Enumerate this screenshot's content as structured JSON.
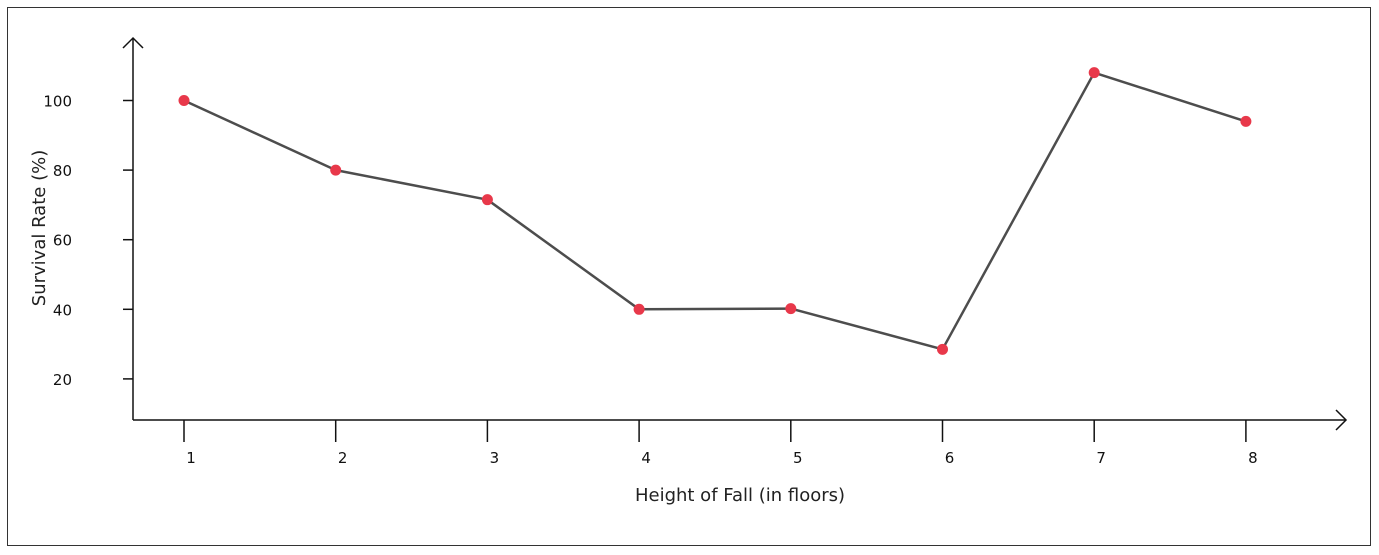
{
  "chart_data": {
    "type": "line",
    "title": "",
    "xlabel": "Height of Fall (in floors)",
    "ylabel": "Survival Rate (%)",
    "x": [
      1,
      2,
      3,
      4,
      5,
      6,
      7,
      8
    ],
    "x_tick_labels": [
      "1",
      "2",
      "3",
      "4",
      "5",
      "6",
      "7",
      "8"
    ],
    "y_ticks": [
      20,
      40,
      60,
      80,
      100
    ],
    "y_tick_labels": [
      "20",
      "40",
      "60",
      "80",
      "100"
    ],
    "ylim": [
      8,
      117
    ],
    "series": [
      {
        "values": [
          100,
          80,
          71.5,
          40,
          40.2,
          28.5,
          108,
          94
        ],
        "line_color": "#4d4d4d",
        "marker_color": "#e8384a"
      }
    ],
    "grid": false,
    "legend": "none"
  }
}
